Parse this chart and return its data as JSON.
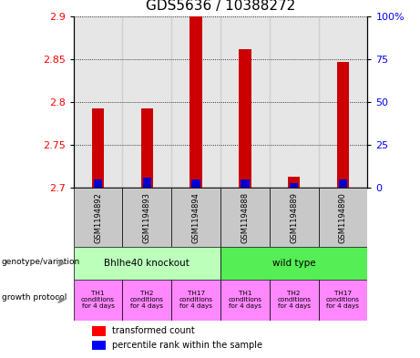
{
  "title": "GDS5636 / 10388272",
  "samples": [
    "GSM1194892",
    "GSM1194893",
    "GSM1194894",
    "GSM1194888",
    "GSM1194889",
    "GSM1194890"
  ],
  "red_values": [
    2.793,
    2.793,
    2.9,
    2.862,
    2.713,
    2.847
  ],
  "blue_pct": [
    5,
    6,
    5,
    5,
    3,
    5
  ],
  "ymin": 2.7,
  "ymax": 2.9,
  "y_ticks": [
    2.7,
    2.75,
    2.8,
    2.85,
    2.9
  ],
  "y_tick_labels": [
    "2.7",
    "2.75",
    "2.8",
    "2.85",
    "2.9"
  ],
  "right_y_ticks": [
    0,
    25,
    50,
    75,
    100
  ],
  "right_y_labels": [
    "0",
    "25",
    "50",
    "75",
    "100%"
  ],
  "genotype_groups": [
    {
      "label": "Bhlhe40 knockout",
      "start": 0,
      "end": 3,
      "color": "#bbffbb"
    },
    {
      "label": "wild type",
      "start": 3,
      "end": 6,
      "color": "#55ee55"
    }
  ],
  "growth_protocols": [
    "TH1\nconditions\nfor 4 days",
    "TH2\nconditions\nfor 4 days",
    "TH17\nconditions\nfor 4 days",
    "TH1\nconditions\nfor 4 days",
    "TH2\nconditions\nfor 4 days",
    "TH17\nconditions\nfor 4 days"
  ],
  "protocol_color": "#ff88ff",
  "bar_width": 0.25,
  "red_color": "#cc0000",
  "blue_color": "#0000cc",
  "sample_box_color": "#c8c8c8",
  "title_fontsize": 11,
  "tick_fontsize": 8,
  "label_fontsize": 7,
  "legend_fontsize": 7
}
